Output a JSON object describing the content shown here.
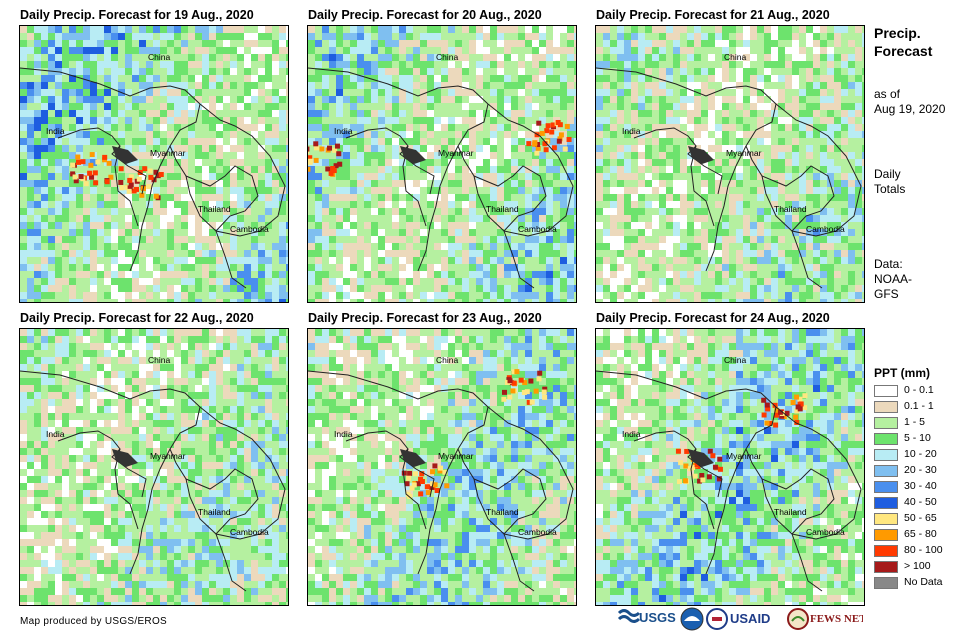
{
  "panels": [
    {
      "title": "Daily Precip. Forecast for 19 Aug., 2020",
      "labels": {
        "china": "China",
        "india": "India",
        "myanmar": "Myanmar",
        "thailand": "Thailand",
        "cambodia": "Cambodia"
      },
      "intensity": 0.9,
      "hotspots": [
        [
          70,
          140
        ],
        [
          120,
          155
        ]
      ]
    },
    {
      "title": "Daily Precip. Forecast for 20 Aug., 2020",
      "labels": {
        "china": "China",
        "india": "India",
        "myanmar": "Myanmar",
        "thailand": "Thailand",
        "cambodia": "Cambodia"
      },
      "intensity": 0.75,
      "hotspots": [
        [
          10,
          130
        ],
        [
          240,
          110
        ]
      ]
    },
    {
      "title": "Daily Precip. Forecast for 21 Aug., 2020",
      "labels": {
        "china": "China",
        "india": "India",
        "myanmar": "Myanmar",
        "thailand": "Thailand",
        "cambodia": "Cambodia"
      },
      "intensity": 0.55,
      "hotspots": []
    },
    {
      "title": "Daily Precip. Forecast for 22 Aug., 2020",
      "labels": {
        "china": "China",
        "india": "India",
        "myanmar": "Myanmar",
        "thailand": "Thailand",
        "cambodia": "Cambodia"
      },
      "intensity": 0.5,
      "hotspots": []
    },
    {
      "title": "Daily Precip. Forecast for 23 Aug., 2020",
      "labels": {
        "china": "China",
        "india": "India",
        "myanmar": "Myanmar",
        "thailand": "Thailand",
        "cambodia": "Cambodia"
      },
      "intensity": 0.7,
      "hotspots": [
        [
          115,
          150
        ],
        [
          215,
          55
        ]
      ]
    },
    {
      "title": "Daily Precip. Forecast for 24 Aug., 2020",
      "labels": {
        "china": "China",
        "india": "India",
        "myanmar": "Myanmar",
        "thailand": "Thailand",
        "cambodia": "Cambodia"
      },
      "intensity": 0.8,
      "hotspots": [
        [
          100,
          135
        ],
        [
          185,
          80
        ]
      ]
    }
  ],
  "sidebar": {
    "title_line1": "Precip.",
    "title_line2": "Forecast",
    "asof_line1": "as of",
    "asof_line2": "Aug 19, 2020",
    "totals_line1": "Daily",
    "totals_line2": "Totals",
    "data_line1": "Data:",
    "data_line2": "NOAA-",
    "data_line3": "GFS"
  },
  "legend": {
    "title": "PPT (mm)",
    "items": [
      {
        "label": "0 - 0.1",
        "color": "#ffffff"
      },
      {
        "label": "0.1 - 1",
        "color": "#ecd9bc"
      },
      {
        "label": "1 - 5",
        "color": "#b5f0a0"
      },
      {
        "label": "5 - 10",
        "color": "#6de36d"
      },
      {
        "label": "10 - 20",
        "color": "#b8ecf4"
      },
      {
        "label": "20 - 30",
        "color": "#7fbff0"
      },
      {
        "label": "30 - 40",
        "color": "#4a8fee"
      },
      {
        "label": "40 - 50",
        "color": "#1e5de0"
      },
      {
        "label": "50 - 65",
        "color": "#ffe780"
      },
      {
        "label": "65 - 80",
        "color": "#ff9a00"
      },
      {
        "label": "80 - 100",
        "color": "#ff3a00"
      },
      {
        "label": "> 100",
        "color": "#a61a1a"
      },
      {
        "label": "No Data",
        "color": "#888888"
      }
    ]
  },
  "credit": "Map produced by USGS/EROS",
  "logos": {
    "usgs": "USGS",
    "usaid": "USAID",
    "fewsnet": "FEWS NET"
  }
}
